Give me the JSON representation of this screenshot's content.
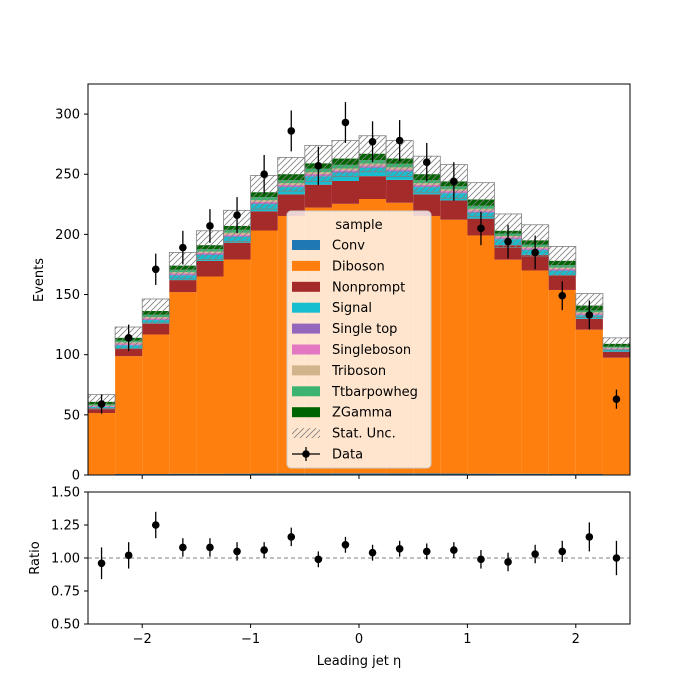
{
  "chart_data": [
    {
      "panel": "main",
      "type": "bar",
      "stacked": true,
      "xlabel": "",
      "ylabel": "Events",
      "xlim": [
        -2.5,
        2.5
      ],
      "ylim": [
        0,
        325
      ],
      "bin_edges": [
        -2.5,
        -2.25,
        -2.0,
        -1.75,
        -1.5,
        -1.25,
        -1.0,
        -0.75,
        -0.5,
        -0.25,
        0.0,
        0.25,
        0.5,
        0.75,
        1.0,
        1.25,
        1.5,
        1.75,
        2.0,
        2.25,
        2.5
      ],
      "y_ticks": [
        0,
        50,
        100,
        150,
        200,
        250,
        300
      ],
      "legend": {
        "title": "sample",
        "placement": "center"
      },
      "series": [
        {
          "name": "Conv",
          "color": "#1f77b4",
          "values": [
            0.5,
            0.8,
            0.8,
            1.0,
            1.0,
            1.1,
            1.2,
            1.3,
            1.3,
            1.4,
            1.4,
            1.3,
            1.3,
            1.2,
            1.1,
            1.0,
            1.0,
            0.8,
            0.8,
            0.5
          ]
        },
        {
          "name": "Diboson",
          "color": "#ff7f0e",
          "values": [
            51,
            98,
            116,
            151,
            164,
            178,
            202,
            214,
            221,
            224,
            228,
            225,
            214,
            211,
            198,
            178,
            169,
            153,
            120,
            97
          ]
        },
        {
          "name": "Nonprompt",
          "color": "#a52a2a",
          "values": [
            4,
            6,
            9,
            10,
            13,
            14,
            16,
            18,
            19,
            19,
            19,
            19,
            18,
            16,
            14,
            12,
            13,
            12,
            9,
            5
          ]
        },
        {
          "name": "Signal",
          "color": "#17becf",
          "values": [
            1,
            3,
            3,
            4,
            5,
            5,
            6,
            6,
            7,
            7,
            7,
            7,
            6,
            6,
            5,
            5,
            4,
            4,
            3,
            2
          ]
        },
        {
          "name": "Single top",
          "color": "#9467bd",
          "values": [
            0.3,
            0.5,
            0.5,
            0.6,
            0.7,
            0.7,
            0.8,
            0.8,
            0.9,
            0.9,
            0.9,
            0.9,
            0.8,
            0.8,
            0.7,
            0.7,
            0.6,
            0.6,
            0.5,
            0.3
          ]
        },
        {
          "name": "Singleboson",
          "color": "#e377c2",
          "values": [
            0.5,
            1,
            1,
            1,
            1,
            1,
            1,
            1,
            1,
            1,
            1,
            1,
            1,
            1,
            1,
            1,
            1,
            1,
            1,
            0.5
          ]
        },
        {
          "name": "Triboson",
          "color": "#d2b48c",
          "values": [
            0.5,
            1,
            1,
            1,
            1,
            1.5,
            1.5,
            1.5,
            1.5,
            1.5,
            1.5,
            1.5,
            1.5,
            1.5,
            1.5,
            1,
            1,
            1,
            1,
            0.5
          ]
        },
        {
          "name": "Ttbarpowheg",
          "color": "#3cb371",
          "values": [
            1,
            1.5,
            2,
            2,
            2,
            2.5,
            2.5,
            2.5,
            3,
            3,
            3,
            3,
            2.5,
            2.5,
            2.5,
            2,
            2,
            2,
            1.5,
            1
          ]
        },
        {
          "name": "ZGamma",
          "color": "#006400",
          "values": [
            2,
            2.2,
            3,
            3.4,
            3.3,
            3.2,
            4,
            4.9,
            4.3,
            5.2,
            5.2,
            4.3,
            4.9,
            4.0,
            5.2,
            2.3,
            3.4,
            3.6,
            4.0,
            2.2
          ]
        }
      ],
      "stat_unc": {
        "name": "Stat. Unc.",
        "color": "#808080",
        "errors": [
          6,
          9,
          10,
          11,
          12,
          13,
          14,
          14,
          15,
          15,
          15,
          15,
          15,
          14,
          14,
          14,
          13,
          12,
          10,
          5
        ]
      },
      "data": {
        "name": "Data",
        "color": "#000000",
        "x": [
          -2.375,
          -2.125,
          -1.875,
          -1.625,
          -1.375,
          -1.125,
          -0.875,
          -0.625,
          -0.375,
          -0.125,
          0.125,
          0.375,
          0.625,
          0.875,
          1.125,
          1.375,
          1.625,
          1.875,
          2.125,
          2.375
        ],
        "y": [
          59,
          114,
          171,
          189,
          207,
          216,
          250,
          286,
          257,
          293,
          277,
          278,
          260,
          244,
          205,
          194,
          185,
          149,
          133,
          63
        ],
        "yerr": [
          8,
          11,
          13,
          14,
          14,
          15,
          16,
          17,
          16,
          17,
          17,
          17,
          16,
          16,
          14,
          14,
          14,
          12,
          12,
          8
        ]
      }
    },
    {
      "panel": "ratio",
      "type": "scatter",
      "xlabel": "Leading jet  η",
      "ylabel": "Ratio",
      "xlim": [
        -2.5,
        2.5
      ],
      "ylim": [
        0.5,
        1.5
      ],
      "x_ticks": [
        -2,
        -1,
        0,
        1,
        2
      ],
      "x_tick_labels": [
        "−2",
        "−1",
        "0",
        "1",
        "2"
      ],
      "y_ticks": [
        0.5,
        0.75,
        1.0,
        1.25,
        1.5
      ],
      "y_tick_labels": [
        "0.50",
        "0.75",
        "1.00",
        "1.25",
        "1.50"
      ],
      "reference_line": 1.0,
      "x": [
        -2.375,
        -2.125,
        -1.875,
        -1.625,
        -1.375,
        -1.125,
        -0.875,
        -0.625,
        -0.375,
        -0.125,
        0.125,
        0.375,
        0.625,
        0.875,
        1.125,
        1.375,
        1.625,
        1.875,
        2.125,
        2.375
      ],
      "y": [
        0.96,
        1.02,
        1.25,
        1.08,
        1.08,
        1.05,
        1.06,
        1.16,
        0.99,
        1.1,
        1.04,
        1.07,
        1.05,
        1.06,
        0.99,
        0.97,
        1.03,
        1.05,
        1.16,
        1.0
      ],
      "yerr": [
        0.12,
        0.1,
        0.1,
        0.07,
        0.07,
        0.07,
        0.06,
        0.07,
        0.06,
        0.06,
        0.06,
        0.06,
        0.06,
        0.06,
        0.07,
        0.07,
        0.07,
        0.08,
        0.11,
        0.13
      ]
    }
  ]
}
